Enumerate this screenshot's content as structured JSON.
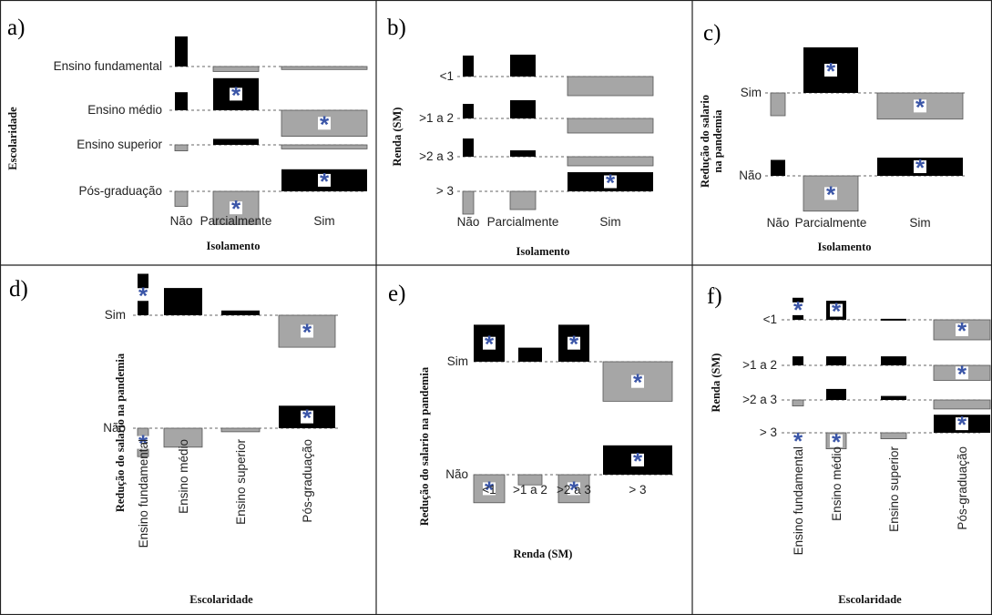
{
  "colors": {
    "positive_bar": "#000000",
    "negative_bar": "#a6a6a6",
    "star": "#3b56a8",
    "baseline": "#666666"
  },
  "marker_symbol": "*",
  "chart_data": [
    {
      "type": "association-mosaic",
      "panel_label": "a)",
      "ylabel": "Escolaridade",
      "xlabel": "Isolamento",
      "row_categories": [
        "Ensino fundamental",
        "Ensino médio",
        "Ensino superior",
        "Pós-graduação"
      ],
      "column_categories": [
        "Não",
        "Parcialmente",
        "Sim"
      ],
      "values": [
        [
          3.0,
          -0.5,
          -0.3
        ],
        [
          1.8,
          3.2,
          -2.6
        ],
        [
          -0.6,
          0.6,
          -0.4
        ],
        [
          -1.5,
          -3.3,
          2.2
        ]
      ],
      "significant": [
        [
          false,
          false,
          false
        ],
        [
          false,
          true,
          true
        ],
        [
          false,
          false,
          false
        ],
        [
          false,
          true,
          true
        ]
      ]
    },
    {
      "type": "association-mosaic",
      "panel_label": "b)",
      "ylabel": "Renda (SM)",
      "xlabel": "Isolamento",
      "row_categories": [
        "<1",
        ">1 a 2",
        ">2 a 3",
        "> 3"
      ],
      "column_categories": [
        "Não",
        "Parcialmente",
        "Sim"
      ],
      "values": [
        [
          2.3,
          2.4,
          -2.1
        ],
        [
          1.6,
          2.0,
          -1.6
        ],
        [
          2.0,
          0.7,
          -1.0
        ],
        [
          -2.5,
          -2.0,
          2.1
        ]
      ],
      "significant": [
        [
          false,
          false,
          false
        ],
        [
          false,
          false,
          false
        ],
        [
          false,
          false,
          false
        ],
        [
          false,
          false,
          true
        ]
      ]
    },
    {
      "type": "association-mosaic",
      "panel_label": "c)",
      "ylabel": "Redução do salario na pandemia",
      "xlabel": "Isolamento",
      "row_categories": [
        "Sim",
        "Não"
      ],
      "column_categories": [
        "Não",
        "Parcialmente",
        "Sim"
      ],
      "values": [
        [
          -2.0,
          4.0,
          -2.3
        ],
        [
          1.4,
          -3.1,
          1.6
        ]
      ],
      "significant": [
        [
          false,
          true,
          true
        ],
        [
          false,
          true,
          true
        ]
      ]
    },
    {
      "type": "association-mosaic",
      "panel_label": "d)",
      "ylabel": "Redução do salario na pandemia",
      "xlabel": "Escolaridade",
      "row_categories": [
        "Sim",
        "Não"
      ],
      "column_categories": [
        "Ensino fundamental",
        "Ensino médio",
        "Ensino superior",
        "Pós-graduação"
      ],
      "values": [
        [
          3.5,
          2.3,
          0.4,
          -2.7
        ],
        [
          -2.4,
          -1.6,
          -0.3,
          1.9
        ]
      ],
      "significant": [
        [
          true,
          false,
          false,
          true
        ],
        [
          true,
          false,
          false,
          true
        ]
      ]
    },
    {
      "type": "association-mosaic",
      "panel_label": "e)",
      "ylabel": "Redução do salario na pandemia",
      "xlabel": "Renda (SM)",
      "row_categories": [
        "Sim",
        "Não"
      ],
      "column_categories": [
        "<1",
        ">1 a 2",
        ">2 a 3",
        "> 3"
      ],
      "values": [
        [
          2.9,
          1.1,
          2.9,
          -3.1
        ],
        [
          -2.2,
          -0.8,
          -2.2,
          2.3
        ]
      ],
      "significant": [
        [
          true,
          false,
          true,
          true
        ],
        [
          true,
          false,
          true,
          true
        ]
      ]
    },
    {
      "type": "association-mosaic",
      "panel_label": "f)",
      "ylabel": "Renda (SM)",
      "xlabel": "Escolaridade",
      "row_categories": [
        "<1",
        ">1 a 2",
        ">2 a 3",
        "> 3"
      ],
      "column_categories": [
        "Ensino fundamental",
        "Ensino médio",
        "Ensino superior",
        "Pós-graduação"
      ],
      "values": [
        [
          2.2,
          1.9,
          0.1,
          -2.0
        ],
        [
          0.9,
          0.9,
          0.9,
          -1.5
        ],
        [
          -0.6,
          1.1,
          0.4,
          -0.9
        ],
        [
          -1.0,
          -1.6,
          -0.6,
          1.8
        ]
      ],
      "significant": [
        [
          true,
          true,
          false,
          true
        ],
        [
          false,
          false,
          false,
          true
        ],
        [
          false,
          false,
          false,
          false
        ],
        [
          true,
          true,
          false,
          true
        ]
      ]
    }
  ]
}
